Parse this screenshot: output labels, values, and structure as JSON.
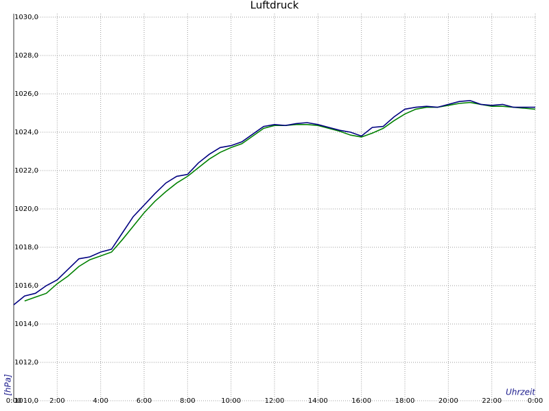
{
  "chart_data": {
    "type": "line",
    "title": "Luftdruck",
    "y_label": "[hPa]",
    "x_label": "Uhrzeit",
    "x": [
      0,
      0.5,
      1,
      1.5,
      2,
      2.5,
      3,
      3.5,
      4,
      4.5,
      5,
      5.5,
      6,
      6.5,
      7,
      7.5,
      8,
      8.5,
      9,
      9.5,
      10,
      10.5,
      11,
      11.5,
      12,
      12.5,
      13,
      13.5,
      14,
      14.5,
      15,
      15.5,
      16,
      16.5,
      17,
      17.5,
      18,
      18.5,
      19,
      19.5,
      20,
      20.5,
      21,
      21.5,
      22,
      22.5,
      23,
      23.5,
      24
    ],
    "series": [
      {
        "color": "#000080",
        "values": [
          1015.0,
          1015.46,
          1015.6,
          1016.0,
          1016.3,
          1016.85,
          1017.4,
          1017.5,
          1017.75,
          1017.9,
          1018.75,
          1019.6,
          1020.2,
          1020.8,
          1021.35,
          1021.7,
          1021.8,
          1022.4,
          1022.85,
          1023.2,
          1023.3,
          1023.5,
          1023.9,
          1024.3,
          1024.4,
          1024.35,
          1024.45,
          1024.5,
          1024.4,
          1024.25,
          1024.1,
          1024.0,
          1023.8,
          1024.25,
          1024.3,
          1024.8,
          1025.2,
          1025.3,
          1025.35,
          1025.3,
          1025.45,
          1025.6,
          1025.65,
          1025.45,
          1025.4,
          1025.45,
          1025.3,
          1025.3,
          1025.3
        ]
      },
      {
        "color": "#008000",
        "values": [
          null,
          1015.2,
          1015.4,
          1015.6,
          1016.1,
          1016.5,
          1017.0,
          1017.35,
          1017.55,
          1017.75,
          1018.4,
          1019.1,
          1019.8,
          1020.4,
          1020.9,
          1021.35,
          1021.7,
          1022.15,
          1022.6,
          1022.95,
          1023.2,
          1023.4,
          1023.8,
          1024.2,
          1024.35,
          1024.35,
          1024.4,
          1024.4,
          1024.35,
          1024.2,
          1024.05,
          1023.85,
          1023.75,
          1023.95,
          1024.2,
          1024.6,
          1024.95,
          1025.2,
          1025.3,
          1025.3,
          1025.4,
          1025.5,
          1025.55,
          1025.45,
          1025.35,
          1025.35,
          1025.3,
          1025.25,
          1025.2
        ]
      }
    ],
    "xlim": [
      0,
      24
    ],
    "xticks": [
      {
        "value": 0,
        "label": "0:00"
      },
      {
        "value": 2,
        "label": "2:00"
      },
      {
        "value": 4,
        "label": "4:00"
      },
      {
        "value": 6,
        "label": "6:00"
      },
      {
        "value": 8,
        "label": "8:00"
      },
      {
        "value": 10,
        "label": "10:00"
      },
      {
        "value": 12,
        "label": "12:00"
      },
      {
        "value": 14,
        "label": "14:00"
      },
      {
        "value": 16,
        "label": "16:00"
      },
      {
        "value": 18,
        "label": "18:00"
      },
      {
        "value": 20,
        "label": "20:00"
      },
      {
        "value": 22,
        "label": "22:00"
      },
      {
        "value": 24,
        "label": "0:00"
      }
    ],
    "ylim": [
      1010,
      1030
    ],
    "yticks": [
      {
        "value": 1010,
        "label": "1010,0"
      },
      {
        "value": 1012,
        "label": "1012,0"
      },
      {
        "value": 1014,
        "label": "1014,0"
      },
      {
        "value": 1016,
        "label": "1016,0"
      },
      {
        "value": 1018,
        "label": "1018,0"
      },
      {
        "value": 1020,
        "label": "1020,0"
      },
      {
        "value": 1022,
        "label": "1022,0"
      },
      {
        "value": 1024,
        "label": "1024,0"
      },
      {
        "value": 1026,
        "label": "1026,0"
      },
      {
        "value": 1028,
        "label": "1028,0"
      },
      {
        "value": 1030,
        "label": "1030,0"
      }
    ],
    "grid": true
  }
}
